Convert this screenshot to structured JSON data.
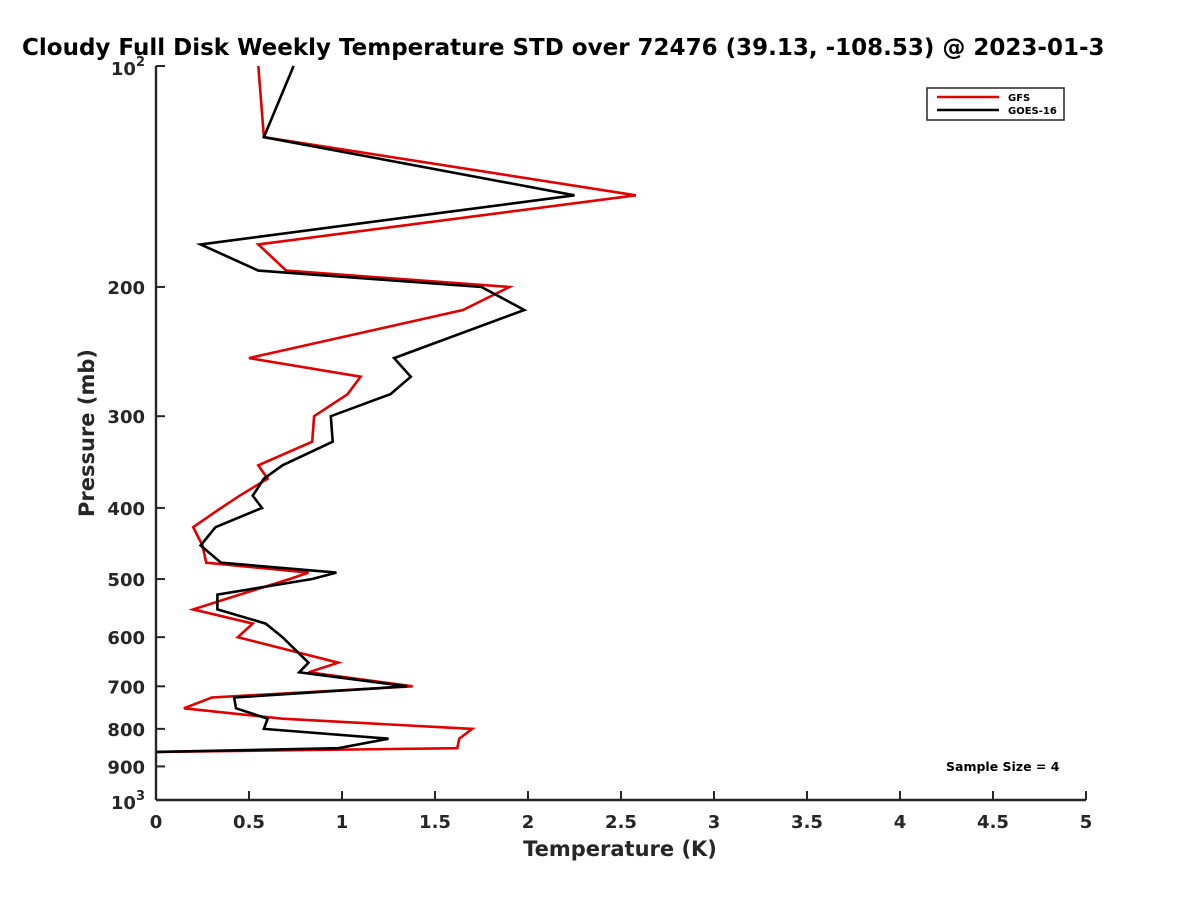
{
  "chart_data": {
    "type": "line",
    "title": "Cloudy Full Disk Weekly Temperature STD over 72476 (39.13, -108.53) @ 2023-01-3",
    "xlabel": "Temperature (K)",
    "ylabel": "Pressure (mb)",
    "xlim": [
      0,
      5
    ],
    "ylim": [
      100,
      1000
    ],
    "y_scale": "log",
    "y_reversed": true,
    "grid": false,
    "legend_position": "top-right",
    "x_ticks": [
      {
        "value": 0,
        "label": "0"
      },
      {
        "value": 0.5,
        "label": "0.5"
      },
      {
        "value": 1,
        "label": "1"
      },
      {
        "value": 1.5,
        "label": "1.5"
      },
      {
        "value": 2,
        "label": "2"
      },
      {
        "value": 2.5,
        "label": "2.5"
      },
      {
        "value": 3,
        "label": "3"
      },
      {
        "value": 3.5,
        "label": "3.5"
      },
      {
        "value": 4,
        "label": "4"
      },
      {
        "value": 4.5,
        "label": "4.5"
      },
      {
        "value": 5,
        "label": "5"
      }
    ],
    "y_ticks": [
      {
        "value": 100,
        "base": "10",
        "exp": "2"
      },
      {
        "value": 200,
        "label": "200"
      },
      {
        "value": 300,
        "label": "300"
      },
      {
        "value": 400,
        "label": "400"
      },
      {
        "value": 500,
        "label": "500"
      },
      {
        "value": 600,
        "label": "600"
      },
      {
        "value": 700,
        "label": "700"
      },
      {
        "value": 800,
        "label": "800"
      },
      {
        "value": 900,
        "label": "900"
      },
      {
        "value": 1000,
        "base": "10",
        "exp": "3"
      }
    ],
    "series": [
      {
        "name": "GFS",
        "color": "#e00000",
        "points": [
          [
            0.55,
            100
          ],
          [
            0.58,
            125
          ],
          [
            2.58,
            150
          ],
          [
            0.55,
            175
          ],
          [
            0.7,
            190
          ],
          [
            1.9,
            200
          ],
          [
            1.65,
            215
          ],
          [
            0.5,
            250
          ],
          [
            1.1,
            265
          ],
          [
            1.03,
            280
          ],
          [
            0.85,
            300
          ],
          [
            0.84,
            325
          ],
          [
            0.55,
            350
          ],
          [
            0.6,
            365
          ],
          [
            0.45,
            385
          ],
          [
            0.35,
            400
          ],
          [
            0.2,
            425
          ],
          [
            0.25,
            450
          ],
          [
            0.27,
            475
          ],
          [
            0.82,
            490
          ],
          [
            0.72,
            500
          ],
          [
            0.45,
            525
          ],
          [
            0.2,
            550
          ],
          [
            0.52,
            575
          ],
          [
            0.44,
            600
          ],
          [
            0.98,
            650
          ],
          [
            0.82,
            670
          ],
          [
            1.38,
            700
          ],
          [
            0.3,
            725
          ],
          [
            0.15,
            750
          ],
          [
            0.68,
            775
          ],
          [
            1.7,
            800
          ],
          [
            1.63,
            825
          ],
          [
            1.62,
            850
          ],
          [
            0,
            860
          ]
        ]
      },
      {
        "name": "GOES-16",
        "color": "#000000",
        "points": [
          [
            0.74,
            100
          ],
          [
            0.58,
            125
          ],
          [
            2.25,
            150
          ],
          [
            0.24,
            175
          ],
          [
            0.55,
            190
          ],
          [
            1.75,
            200
          ],
          [
            1.98,
            215
          ],
          [
            1.28,
            250
          ],
          [
            1.37,
            265
          ],
          [
            1.26,
            280
          ],
          [
            0.94,
            300
          ],
          [
            0.95,
            325
          ],
          [
            0.68,
            350
          ],
          [
            0.58,
            365
          ],
          [
            0.52,
            385
          ],
          [
            0.57,
            400
          ],
          [
            0.32,
            425
          ],
          [
            0.24,
            450
          ],
          [
            0.35,
            475
          ],
          [
            0.97,
            490
          ],
          [
            0.84,
            500
          ],
          [
            0.33,
            525
          ],
          [
            0.33,
            550
          ],
          [
            0.59,
            575
          ],
          [
            0.68,
            600
          ],
          [
            0.82,
            650
          ],
          [
            0.77,
            670
          ],
          [
            1.35,
            700
          ],
          [
            0.42,
            725
          ],
          [
            0.43,
            750
          ],
          [
            0.6,
            775
          ],
          [
            0.58,
            800
          ],
          [
            1.25,
            825
          ],
          [
            0.98,
            850
          ],
          [
            0,
            860
          ]
        ]
      }
    ],
    "annotation": "Sample Size = 4"
  }
}
